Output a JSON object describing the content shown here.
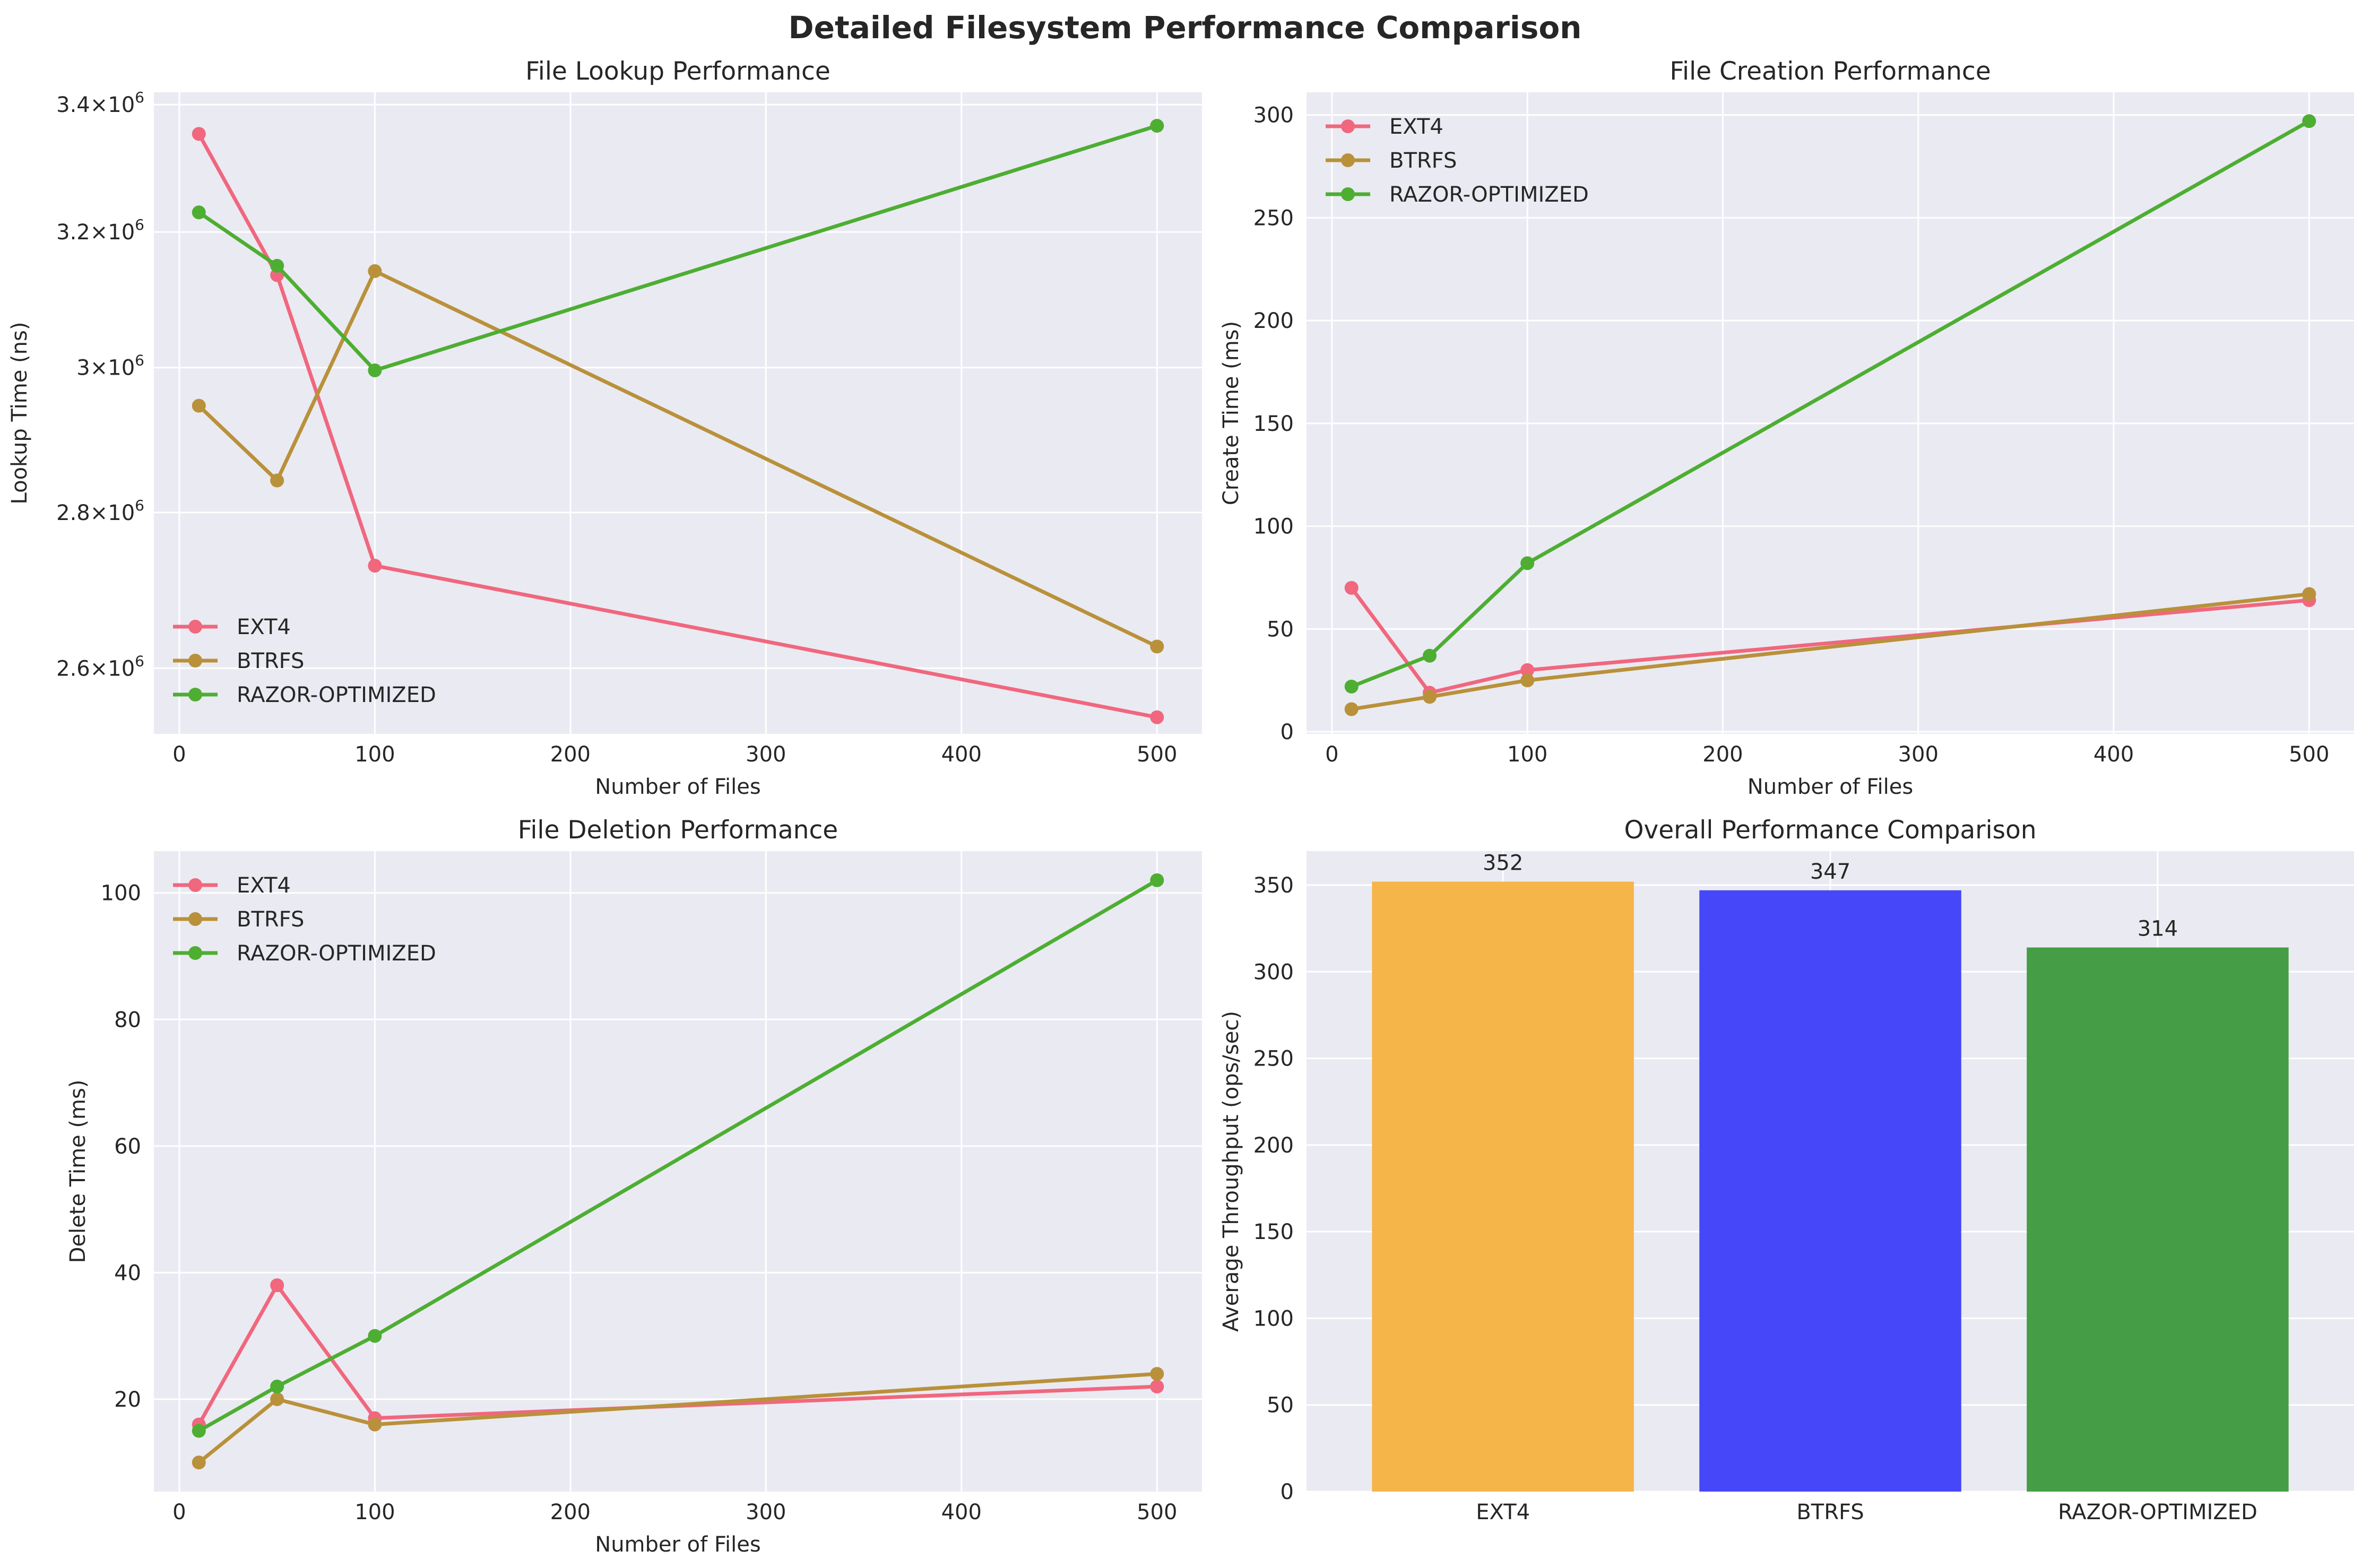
{
  "figure_title": "Detailed Filesystem Performance Comparison",
  "colors": {
    "background": "#EAEAF2",
    "grid": "#FFFFFF",
    "EXT4": "#F0677E",
    "BTRFS": "#B9913A",
    "RAZOR-OPTIMIZED": "#4DAE32",
    "bar_EXT4": "#F6B548",
    "bar_BTRFS": "#4747FA",
    "bar_RAZOR-OPTIMIZED": "#459E45"
  },
  "chart_data": [
    {
      "type": "line",
      "title": "File Lookup Performance",
      "xlabel": "Number of Files",
      "ylabel": "Lookup Time (ns)",
      "yscale": "log",
      "xlim": [
        -13,
        523
      ],
      "ylim": [
        2520000,
        3420000
      ],
      "xticks": [
        0,
        100,
        200,
        300,
        400,
        500
      ],
      "yticks": [
        {
          "value": 2600000,
          "mantissa": "2.6",
          "exponent": "6"
        },
        {
          "value": 2800000,
          "mantissa": "2.8",
          "exponent": "6"
        },
        {
          "value": 3000000,
          "mantissa": "3",
          "exponent": "6"
        },
        {
          "value": 3200000,
          "mantissa": "3.2",
          "exponent": "6"
        },
        {
          "value": 3400000,
          "mantissa": "3.4",
          "exponent": "6"
        }
      ],
      "legend_loc": "lower-left",
      "x": [
        10,
        50,
        100,
        500
      ],
      "series": [
        {
          "name": "EXT4",
          "values": [
            3353000,
            3135000,
            2730000,
            2540000
          ]
        },
        {
          "name": "BTRFS",
          "values": [
            2946000,
            2843000,
            3141000,
            2627000
          ]
        },
        {
          "name": "RAZOR-OPTIMIZED",
          "values": [
            3230000,
            3149000,
            2996000,
            3366000
          ]
        }
      ]
    },
    {
      "type": "line",
      "title": "File Creation Performance",
      "xlabel": "Number of Files",
      "ylabel": "Create Time (ms)",
      "yscale": "linear",
      "xlim": [
        -13,
        523
      ],
      "ylim": [
        -1,
        311
      ],
      "xticks": [
        0,
        100,
        200,
        300,
        400,
        500
      ],
      "yticks": [
        0,
        50,
        100,
        150,
        200,
        250,
        300
      ],
      "legend_loc": "upper-left",
      "x": [
        10,
        50,
        100,
        500
      ],
      "series": [
        {
          "name": "EXT4",
          "values": [
            70,
            19,
            30,
            64
          ]
        },
        {
          "name": "BTRFS",
          "values": [
            11,
            17,
            25,
            67
          ]
        },
        {
          "name": "RAZOR-OPTIMIZED",
          "values": [
            22,
            37,
            82,
            297
          ]
        }
      ]
    },
    {
      "type": "line",
      "title": "File Deletion Performance",
      "xlabel": "Number of Files",
      "ylabel": "Delete Time (ms)",
      "yscale": "linear",
      "xlim": [
        -13,
        523
      ],
      "ylim": [
        5.4,
        106.6
      ],
      "xticks": [
        0,
        100,
        200,
        300,
        400,
        500
      ],
      "yticks": [
        20,
        40,
        60,
        80,
        100
      ],
      "legend_loc": "upper-left",
      "x": [
        10,
        50,
        100,
        500
      ],
      "series": [
        {
          "name": "EXT4",
          "values": [
            16,
            38,
            17,
            22
          ]
        },
        {
          "name": "BTRFS",
          "values": [
            10,
            20,
            16,
            24
          ]
        },
        {
          "name": "RAZOR-OPTIMIZED",
          "values": [
            15,
            22,
            30,
            102
          ]
        }
      ]
    },
    {
      "type": "bar",
      "title": "Overall Performance Comparison",
      "xlabel": "",
      "ylabel": "Average Throughput (ops/sec)",
      "ylim": [
        0,
        369.6
      ],
      "yticks": [
        0,
        50,
        100,
        150,
        200,
        250,
        300,
        350
      ],
      "categories": [
        "EXT4",
        "BTRFS",
        "RAZOR-OPTIMIZED"
      ],
      "values": [
        352,
        347,
        314
      ],
      "data_labels": [
        "352",
        "347",
        "314"
      ]
    }
  ]
}
